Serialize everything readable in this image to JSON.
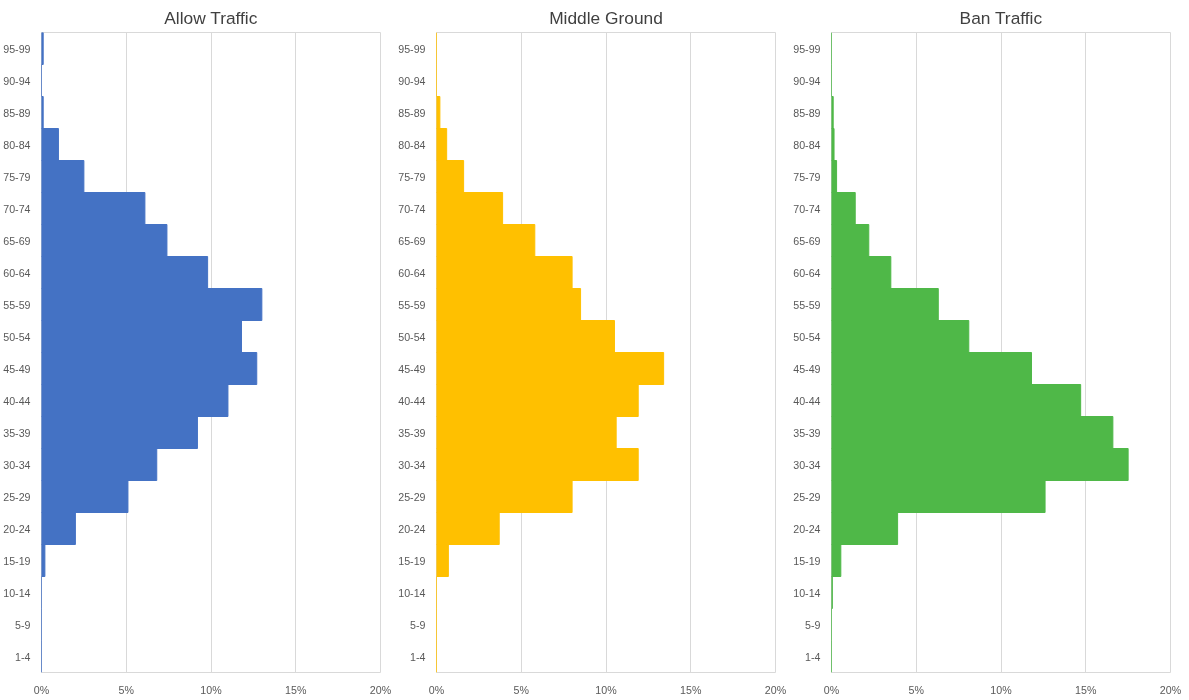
{
  "chart_data": [
    {
      "type": "bar",
      "orientation": "horizontal",
      "title": "Allow Traffic",
      "categories": [
        "95-99",
        "90-94",
        "85-89",
        "80-84",
        "75-79",
        "70-74",
        "65-69",
        "60-64",
        "55-59",
        "50-54",
        "45-49",
        "40-44",
        "35-39",
        "30-34",
        "25-29",
        "20-24",
        "15-19",
        "10-14",
        "5-9",
        "1-4"
      ],
      "series": [
        {
          "color": "#4472c4",
          "values": [
            0.1,
            0,
            0.1,
            1.0,
            2.5,
            6.1,
            7.4,
            9.8,
            13.0,
            11.8,
            12.7,
            11.0,
            9.2,
            6.8,
            5.1,
            2.0,
            0.2,
            0,
            0,
            0
          ]
        }
      ],
      "xlim": [
        0,
        20
      ],
      "xticks": [
        {
          "value": 0,
          "label": "0%"
        },
        {
          "value": 5,
          "label": "5%"
        },
        {
          "value": 10,
          "label": "10%"
        },
        {
          "value": 15,
          "label": "15%"
        },
        {
          "value": 20,
          "label": "20%"
        }
      ],
      "grid": "x"
    },
    {
      "type": "bar",
      "orientation": "horizontal",
      "title": "Middle Ground",
      "categories": [
        "95-99",
        "90-94",
        "85-89",
        "80-84",
        "75-79",
        "70-74",
        "65-69",
        "60-64",
        "55-59",
        "50-54",
        "45-49",
        "40-44",
        "35-39",
        "30-34",
        "25-29",
        "20-24",
        "15-19",
        "10-14",
        "5-9",
        "1-4"
      ],
      "series": [
        {
          "color": "#ffc000",
          "values": [
            0,
            0,
            0.2,
            0.6,
            1.6,
            3.9,
            5.8,
            8.0,
            8.5,
            10.5,
            13.4,
            11.9,
            10.6,
            11.9,
            8.0,
            3.7,
            0.7,
            0,
            0,
            0
          ]
        }
      ],
      "xlim": [
        0,
        20
      ],
      "xticks": [
        {
          "value": 0,
          "label": "0%"
        },
        {
          "value": 5,
          "label": "5%"
        },
        {
          "value": 10,
          "label": "10%"
        },
        {
          "value": 15,
          "label": "15%"
        },
        {
          "value": 20,
          "label": "20%"
        }
      ],
      "grid": "x"
    },
    {
      "type": "bar",
      "orientation": "horizontal",
      "title": "Ban Traffic",
      "categories": [
        "95-99",
        "90-94",
        "85-89",
        "80-84",
        "75-79",
        "70-74",
        "65-69",
        "60-64",
        "55-59",
        "50-54",
        "45-49",
        "40-44",
        "35-39",
        "30-34",
        "25-29",
        "20-24",
        "15-19",
        "10-14",
        "5-9",
        "1-4"
      ],
      "series": [
        {
          "color": "#4fb848",
          "values": [
            0,
            0,
            0.1,
            0.15,
            0.3,
            1.4,
            2.2,
            3.5,
            6.3,
            8.1,
            11.8,
            14.7,
            16.6,
            17.5,
            12.6,
            3.9,
            0.55,
            0.05,
            0,
            0
          ]
        }
      ],
      "xlim": [
        0,
        20
      ],
      "xticks": [
        {
          "value": 0,
          "label": "0%"
        },
        {
          "value": 5,
          "label": "5%"
        },
        {
          "value": 10,
          "label": "10%"
        },
        {
          "value": 15,
          "label": "15%"
        },
        {
          "value": 20,
          "label": "20%"
        }
      ],
      "grid": "x"
    }
  ]
}
